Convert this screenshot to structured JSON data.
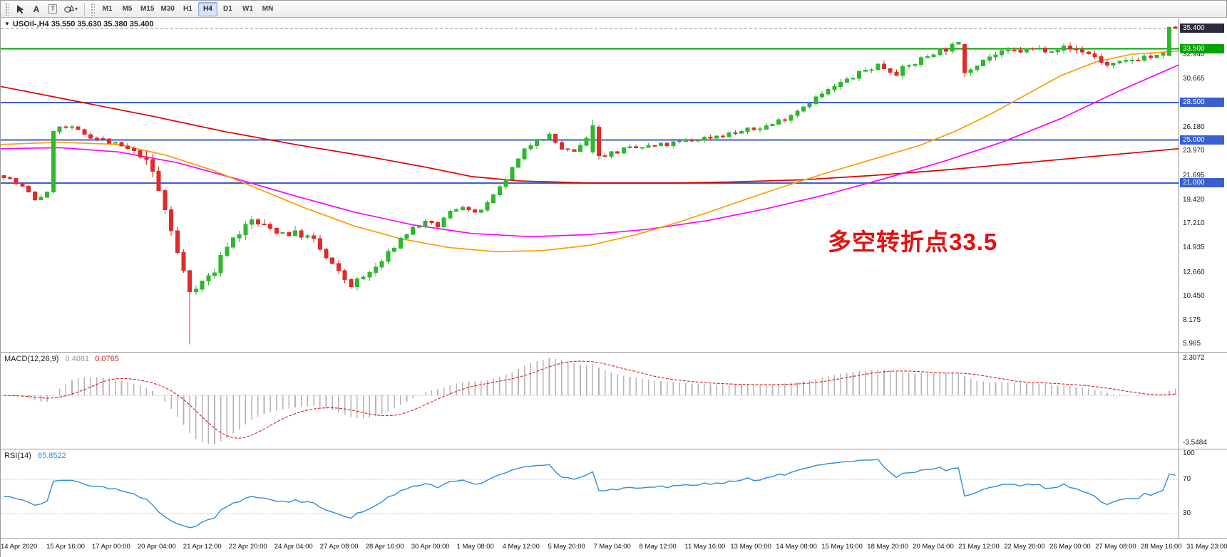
{
  "toolbar": {
    "tools": {
      "a_label": "A",
      "t_label": "T"
    },
    "timeframes": [
      "M1",
      "M5",
      "M15",
      "M30",
      "H1",
      "H4",
      "D1",
      "W1",
      "MN"
    ],
    "active_timeframe": "H4"
  },
  "chart": {
    "title": "USOil-,H4 35.550 35.630 35.380 35.400",
    "annotation": {
      "text": "多空转折点33.5",
      "color": "#e51010"
    }
  },
  "chart_data": {
    "type": "candlestick",
    "symbol": "USOil-",
    "timeframe": "H4",
    "last_ohlc": {
      "open": "35.550",
      "high": "35.630",
      "low": "35.380",
      "close": "35.400"
    },
    "bars": 190,
    "price_range": [
      5.2,
      36.4
    ],
    "colors": {
      "up": "#2eb82e",
      "down": "#e02b2b",
      "ma_fast": "#ff9c00",
      "ma_mid": "#ff00ff",
      "ma_slow": "#e00000",
      "rsi": "#2f8be0",
      "macd_hist": "#b4b4b4",
      "macd_signal": "#d42020",
      "level_blue": "#3a5fd0",
      "level_green": "#00a400"
    },
    "close_keypoints": [
      [
        0,
        21.7
      ],
      [
        3,
        20.6
      ],
      [
        5,
        19.5
      ],
      [
        7,
        20.0
      ],
      [
        8,
        26.0
      ],
      [
        10,
        26.2
      ],
      [
        13,
        25.6
      ],
      [
        16,
        25.0
      ],
      [
        19,
        24.4
      ],
      [
        22,
        23.6
      ],
      [
        24,
        22.0
      ],
      [
        26,
        18.5
      ],
      [
        28,
        14.5
      ],
      [
        30,
        11.0
      ],
      [
        32,
        11.8
      ],
      [
        34,
        12.8
      ],
      [
        36,
        15.3
      ],
      [
        38,
        16.4
      ],
      [
        40,
        17.5
      ],
      [
        42,
        16.9
      ],
      [
        45,
        16.4
      ],
      [
        48,
        16.2
      ],
      [
        50,
        15.6
      ],
      [
        52,
        14.0
      ],
      [
        54,
        12.6
      ],
      [
        56,
        11.5
      ],
      [
        58,
        12.2
      ],
      [
        60,
        13.1
      ],
      [
        62,
        14.3
      ],
      [
        64,
        15.8
      ],
      [
        66,
        16.8
      ],
      [
        68,
        17.3
      ],
      [
        70,
        17.0
      ],
      [
        72,
        18.3
      ],
      [
        74,
        18.9
      ],
      [
        76,
        18.1
      ],
      [
        78,
        19.0
      ],
      [
        80,
        20.5
      ],
      [
        82,
        22.3
      ],
      [
        84,
        24.0
      ],
      [
        86,
        25.2
      ],
      [
        88,
        25.4
      ],
      [
        90,
        24.2
      ],
      [
        92,
        23.8
      ],
      [
        94,
        25.0
      ],
      [
        95,
        26.3
      ],
      [
        96,
        23.6
      ],
      [
        98,
        23.8
      ],
      [
        100,
        24.1
      ],
      [
        103,
        24.3
      ],
      [
        106,
        24.5
      ],
      [
        109,
        24.8
      ],
      [
        112,
        25.1
      ],
      [
        115,
        25.4
      ],
      [
        118,
        25.7
      ],
      [
        121,
        26.0
      ],
      [
        124,
        26.5
      ],
      [
        127,
        27.4
      ],
      [
        130,
        28.6
      ],
      [
        133,
        29.6
      ],
      [
        136,
        30.6
      ],
      [
        139,
        31.5
      ],
      [
        141,
        32.0
      ],
      [
        144,
        31.3
      ],
      [
        147,
        32.2
      ],
      [
        150,
        33.2
      ],
      [
        153,
        33.7
      ],
      [
        154,
        33.9
      ],
      [
        155,
        31.3
      ],
      [
        157,
        32.2
      ],
      [
        159,
        32.8
      ],
      [
        162,
        33.2
      ],
      [
        165,
        33.4
      ],
      [
        168,
        33.5
      ],
      [
        171,
        33.6
      ],
      [
        174,
        33.3
      ],
      [
        176,
        32.8
      ],
      [
        178,
        31.9
      ],
      [
        180,
        32.1
      ],
      [
        182,
        32.5
      ],
      [
        184,
        32.8
      ],
      [
        186,
        32.7
      ],
      [
        187,
        32.9
      ],
      [
        188,
        35.5
      ],
      [
        189,
        35.4
      ]
    ],
    "special_bars": [
      {
        "i": 30,
        "l": 5.97
      },
      {
        "i": 95,
        "o": 23.9,
        "c": 26.35,
        "h": 26.9,
        "l": 23.7
      },
      {
        "i": 96,
        "o": 26.2,
        "c": 23.55,
        "h": 26.45,
        "l": 23.2
      },
      {
        "i": 155,
        "o": 33.9,
        "c": 31.3,
        "h": 34.05,
        "l": 30.9
      },
      {
        "i": 188,
        "o": 32.9,
        "c": 35.5,
        "h": 35.6,
        "l": 32.8
      },
      {
        "i": 189,
        "o": 35.55,
        "c": 35.4,
        "h": 35.63,
        "l": 35.38
      }
    ],
    "moving_averages": [
      {
        "name": "ma-slow-red-line",
        "color": "#e00000",
        "points": [
          [
            0,
            30.0
          ],
          [
            0.07,
            28.5
          ],
          [
            0.13,
            27.2
          ],
          [
            0.19,
            25.8
          ],
          [
            0.25,
            24.6
          ],
          [
            0.31,
            23.5
          ],
          [
            0.36,
            22.5
          ],
          [
            0.4,
            21.6
          ],
          [
            0.44,
            21.2
          ],
          [
            0.5,
            21.0
          ],
          [
            0.57,
            21.0
          ],
          [
            0.62,
            21.1
          ],
          [
            0.68,
            21.3
          ],
          [
            0.74,
            21.7
          ],
          [
            0.8,
            22.2
          ],
          [
            0.86,
            22.8
          ],
          [
            0.92,
            23.4
          ],
          [
            0.97,
            23.9
          ],
          [
            1,
            24.2
          ]
        ]
      },
      {
        "name": "ma-mid-magenta-line",
        "color": "#ff00ff",
        "points": [
          [
            0,
            24.2
          ],
          [
            0.05,
            24.3
          ],
          [
            0.1,
            23.9
          ],
          [
            0.15,
            22.9
          ],
          [
            0.2,
            21.4
          ],
          [
            0.25,
            19.8
          ],
          [
            0.3,
            18.3
          ],
          [
            0.35,
            17.1
          ],
          [
            0.4,
            16.3
          ],
          [
            0.45,
            16.0
          ],
          [
            0.5,
            16.2
          ],
          [
            0.55,
            16.7
          ],
          [
            0.6,
            17.5
          ],
          [
            0.65,
            18.6
          ],
          [
            0.7,
            19.9
          ],
          [
            0.75,
            21.4
          ],
          [
            0.8,
            23.0
          ],
          [
            0.85,
            24.8
          ],
          [
            0.9,
            27.0
          ],
          [
            0.95,
            29.6
          ],
          [
            1,
            32.0
          ]
        ]
      },
      {
        "name": "ma-fast-orange-line",
        "color": "#ff9c00",
        "points": [
          [
            0,
            24.6
          ],
          [
            0.05,
            24.8
          ],
          [
            0.1,
            24.6
          ],
          [
            0.14,
            23.6
          ],
          [
            0.18,
            22.2
          ],
          [
            0.22,
            20.4
          ],
          [
            0.26,
            18.6
          ],
          [
            0.3,
            17.0
          ],
          [
            0.34,
            15.8
          ],
          [
            0.38,
            15.0
          ],
          [
            0.42,
            14.6
          ],
          [
            0.46,
            14.7
          ],
          [
            0.5,
            15.2
          ],
          [
            0.54,
            16.2
          ],
          [
            0.58,
            17.5
          ],
          [
            0.62,
            19.0
          ],
          [
            0.66,
            20.5
          ],
          [
            0.7,
            21.9
          ],
          [
            0.74,
            23.2
          ],
          [
            0.78,
            24.5
          ],
          [
            0.81,
            25.8
          ],
          [
            0.84,
            27.4
          ],
          [
            0.87,
            29.2
          ],
          [
            0.9,
            31.0
          ],
          [
            0.93,
            32.3
          ],
          [
            0.96,
            33.0
          ],
          [
            1,
            33.3
          ]
        ]
      }
    ],
    "levels": [
      {
        "label": "35.400",
        "price": 35.4,
        "color": "#8a8a8a",
        "dash": "4,3",
        "width": 1,
        "badge_bg": "#2b2b3b"
      },
      {
        "label": "33.500",
        "price": 33.5,
        "color": "#00a400",
        "width": 2,
        "badge_bg": "#00a400"
      },
      {
        "label": "28.500",
        "price": 28.5,
        "color": "#3a5fd0",
        "width": 2,
        "badge_bg": "#3a5fd0"
      },
      {
        "label": "25.000",
        "price": 25.0,
        "color": "#3a5fd0",
        "width": 2,
        "badge_bg": "#3a5fd0"
      },
      {
        "label": "21.000",
        "price": 21.0,
        "color": "#3a5fd0",
        "width": 2,
        "badge_bg": "#3a5fd0"
      }
    ],
    "price_axis_ticks": [
      {
        "label": "32.940",
        "price": 32.94
      },
      {
        "label": "30.665",
        "price": 30.665
      },
      {
        "label": "26.180",
        "price": 26.18
      },
      {
        "label": "23.970",
        "price": 23.97
      },
      {
        "label": "21.695",
        "price": 21.695
      },
      {
        "label": "19.420",
        "price": 19.42
      },
      {
        "label": "17.210",
        "price": 17.21
      },
      {
        "label": "14.935",
        "price": 14.935
      },
      {
        "label": "12.660",
        "price": 12.66
      },
      {
        "label": "10.450",
        "price": 10.45
      },
      {
        "label": "8.175",
        "price": 8.175
      },
      {
        "label": "5.965",
        "price": 5.965
      }
    ],
    "macd": {
      "label": "MACD(12,26,9)",
      "main_value": "0.4081",
      "signal_value": "0.0765",
      "axis_max": "2.3072",
      "axis_min": "-3.5484"
    },
    "rsi": {
      "label": "RSI(14)",
      "value": "65.8522",
      "levels": [
        70,
        30
      ],
      "axis": [
        {
          "label": "100",
          "value": 100
        },
        {
          "label": "70",
          "value": 70
        },
        {
          "label": "30",
          "value": 30
        }
      ]
    },
    "time_labels": [
      "14 Apr 2020",
      "15 Apr 16:00",
      "17 Apr 00:00",
      "20 Apr 04:00",
      "21 Apr 12:00",
      "22 Apr 20:00",
      "24 Apr 04:00",
      "27 Apr 08:00",
      "28 Apr 16:00",
      "30 Apr 00:00",
      "1 May 08:00",
      "4 May 12:00",
      "5 May 20:00",
      "7 May 04:00",
      "8 May 12:00",
      "11 May 16:00",
      "13 May 00:00",
      "14 May 08:00",
      "15 May 16:00",
      "18 May 20:00",
      "20 May 04:00",
      "21 May 12:00",
      "22 May 20:00",
      "26 May 00:00",
      "27 May 08:00",
      "28 May 16:00",
      "31 May 23:00"
    ]
  }
}
